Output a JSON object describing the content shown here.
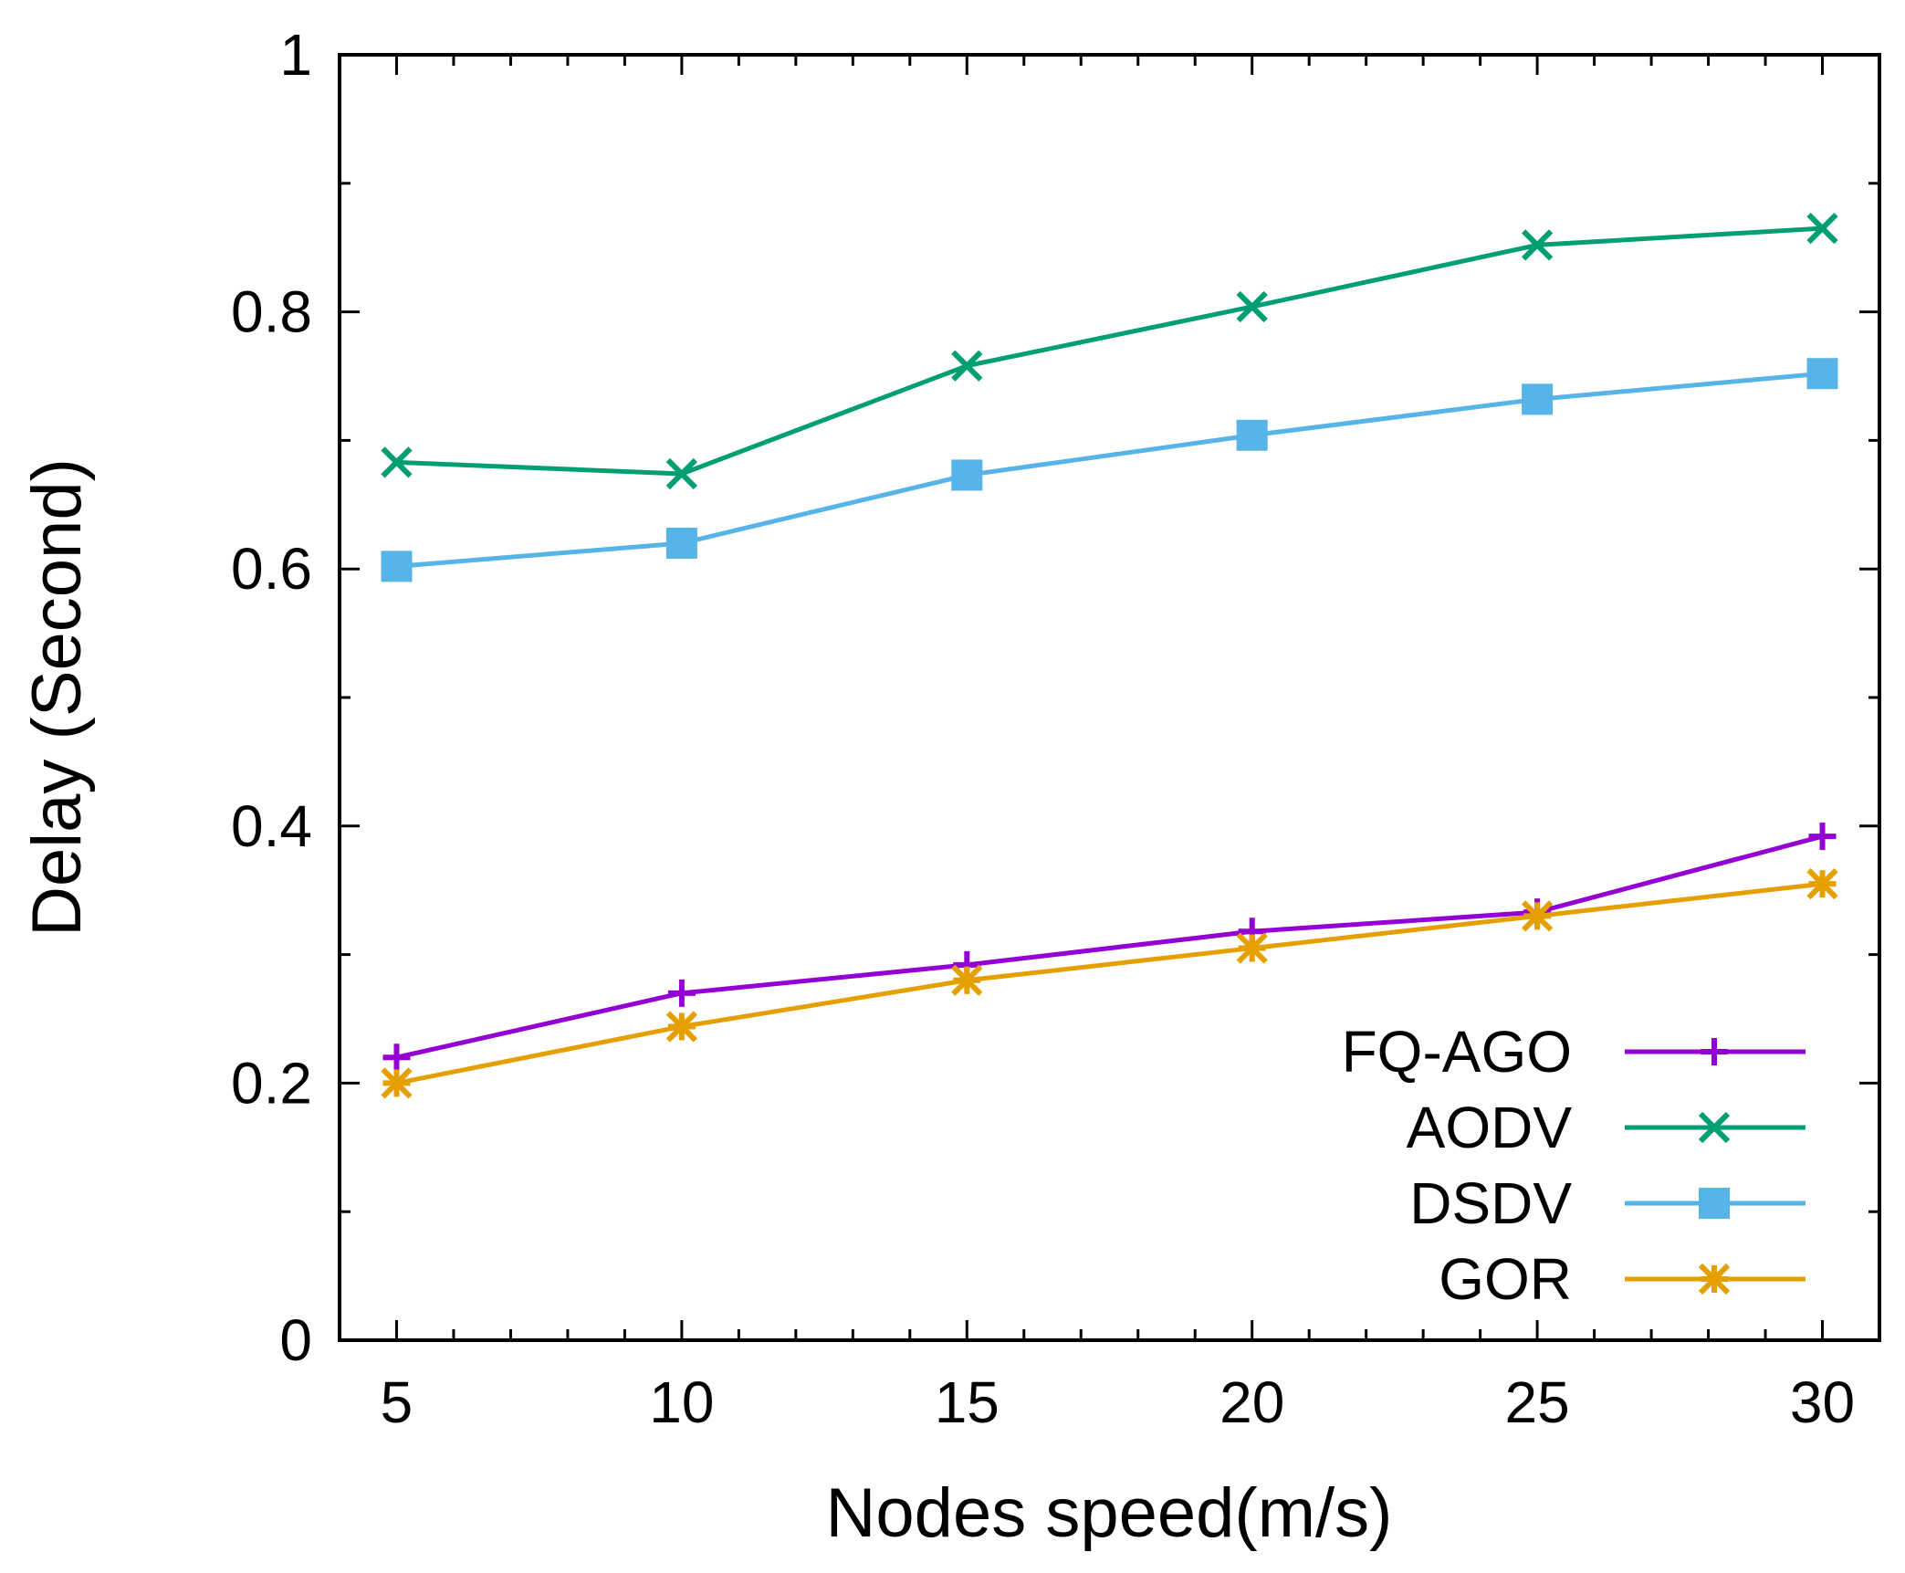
{
  "chart_data": {
    "type": "line",
    "title": "",
    "xlabel": "Nodes speed(m/s)",
    "ylabel": "Delay (Second)",
    "x": [
      5,
      10,
      15,
      20,
      25,
      30
    ],
    "xlim": [
      4,
      31
    ],
    "ylim": [
      0,
      1
    ],
    "x_ticks": [
      5,
      10,
      15,
      20,
      25,
      30
    ],
    "x_tick_labels": [
      "5",
      "10",
      "15",
      "20",
      "25",
      "30"
    ],
    "y_ticks": [
      0,
      0.2,
      0.4,
      0.6,
      0.8,
      1
    ],
    "y_tick_labels": [
      "0",
      "0.2",
      "0.4",
      "0.6",
      "0.8",
      "1"
    ],
    "grid": false,
    "legend_position": "bottom-right",
    "series": [
      {
        "name": "FQ-AGO",
        "color": "#9400d3",
        "marker": "plus",
        "values": [
          0.22,
          0.27,
          0.292,
          0.318,
          0.333,
          0.392
        ]
      },
      {
        "name": "AODV",
        "color": "#009e73",
        "marker": "cross",
        "values": [
          0.683,
          0.674,
          0.758,
          0.804,
          0.852,
          0.865
        ]
      },
      {
        "name": "DSDV",
        "color": "#56b4e9",
        "marker": "square",
        "values": [
          0.602,
          0.62,
          0.673,
          0.704,
          0.732,
          0.752
        ]
      },
      {
        "name": "GOR",
        "color": "#e69f00",
        "marker": "star",
        "values": [
          0.2,
          0.244,
          0.28,
          0.305,
          0.33,
          0.355
        ]
      }
    ]
  }
}
